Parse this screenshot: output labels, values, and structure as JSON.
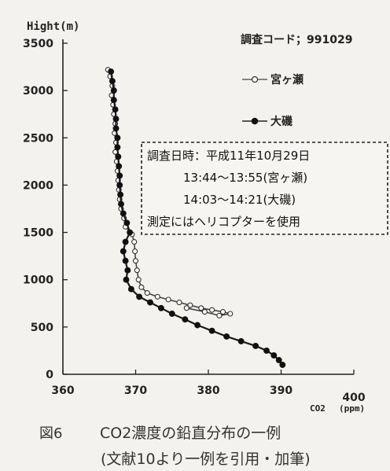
{
  "header": {
    "ylabel": "Hight(m)",
    "survey_code": "調査コード；991029"
  },
  "legend": [
    {
      "name": "宮ヶ瀬",
      "marker": "open"
    },
    {
      "name": "大磯",
      "marker": "filled"
    }
  ],
  "annotation": {
    "lines": [
      "調査日時：平成11年10月29日",
      "13:44～13:55(宮ヶ瀬)",
      "14:03～14:21(大磯)",
      "測定にはヘリコプターを使用"
    ]
  },
  "x_axis": {
    "label_main": "CO2",
    "label_unit": "(ppm)",
    "ticks": [
      "360",
      "370",
      "380",
      "390",
      "400"
    ]
  },
  "y_axis": {
    "ticks": [
      "0",
      "500",
      "1000",
      "1500",
      "2000",
      "2500",
      "3000",
      "3500"
    ]
  },
  "caption": {
    "fig_num": "図6",
    "title": "CO2濃度の鉛直分布の一例",
    "source": "(文献10より一例を引用・加筆)"
  },
  "chart_data": {
    "type": "line",
    "xlabel": "CO2 (ppm)",
    "ylabel": "Hight(m)",
    "xlim": [
      360,
      400
    ],
    "ylim": [
      0,
      3500
    ],
    "grid": false,
    "legend_placement": "top-right",
    "series": [
      {
        "name": "宮ヶ瀬",
        "marker": "open",
        "points": [
          [
            366.2,
            3220
          ],
          [
            366.5,
            3150
          ],
          [
            366.8,
            3050
          ],
          [
            366.7,
            2950
          ],
          [
            366.9,
            2850
          ],
          [
            367.0,
            2750
          ],
          [
            367.2,
            2650
          ],
          [
            367.1,
            2550
          ],
          [
            367.3,
            2450
          ],
          [
            367.2,
            2350
          ],
          [
            367.4,
            2250
          ],
          [
            367.5,
            2150
          ],
          [
            367.6,
            2050
          ],
          [
            367.7,
            1950
          ],
          [
            367.8,
            1850
          ],
          [
            368.0,
            1750
          ],
          [
            368.4,
            1650
          ],
          [
            368.6,
            1560
          ],
          [
            369.5,
            1480
          ],
          [
            369.8,
            1400
          ],
          [
            369.9,
            1300
          ],
          [
            370.0,
            1200
          ],
          [
            370.2,
            1100
          ],
          [
            370.4,
            1000
          ],
          [
            370.8,
            920
          ],
          [
            371.6,
            860
          ],
          [
            373.0,
            820
          ],
          [
            374.5,
            790
          ],
          [
            376.0,
            760
          ],
          [
            377.5,
            730
          ],
          [
            379.0,
            700
          ],
          [
            380.5,
            680
          ],
          [
            382.0,
            660
          ],
          [
            383.0,
            640
          ],
          [
            381.5,
            620
          ],
          [
            379.5,
            660
          ],
          [
            377.0,
            700
          ]
        ]
      },
      {
        "name": "大磯",
        "marker": "filled",
        "points": [
          [
            366.6,
            3200
          ],
          [
            366.8,
            3100
          ],
          [
            367.0,
            3000
          ],
          [
            367.0,
            2900
          ],
          [
            367.2,
            2800
          ],
          [
            367.3,
            2700
          ],
          [
            367.3,
            2600
          ],
          [
            367.5,
            2500
          ],
          [
            367.5,
            2400
          ],
          [
            367.6,
            2300
          ],
          [
            367.7,
            2200
          ],
          [
            367.8,
            2100
          ],
          [
            367.8,
            2000
          ],
          [
            367.9,
            1900
          ],
          [
            368.0,
            1800
          ],
          [
            368.3,
            1700
          ],
          [
            368.8,
            1600
          ],
          [
            369.2,
            1500
          ],
          [
            368.6,
            1400
          ],
          [
            368.3,
            1300
          ],
          [
            368.6,
            1200
          ],
          [
            368.9,
            1100
          ],
          [
            368.7,
            1000
          ],
          [
            369.4,
            900
          ],
          [
            370.5,
            820
          ],
          [
            372.0,
            760
          ],
          [
            373.5,
            700
          ],
          [
            375.0,
            640
          ],
          [
            376.8,
            580
          ],
          [
            378.5,
            520
          ],
          [
            380.5,
            460
          ],
          [
            382.5,
            400
          ],
          [
            384.5,
            350
          ],
          [
            386.5,
            300
          ],
          [
            388.0,
            250
          ],
          [
            389.0,
            200
          ],
          [
            389.7,
            150
          ],
          [
            390.2,
            100
          ]
        ]
      }
    ]
  }
}
